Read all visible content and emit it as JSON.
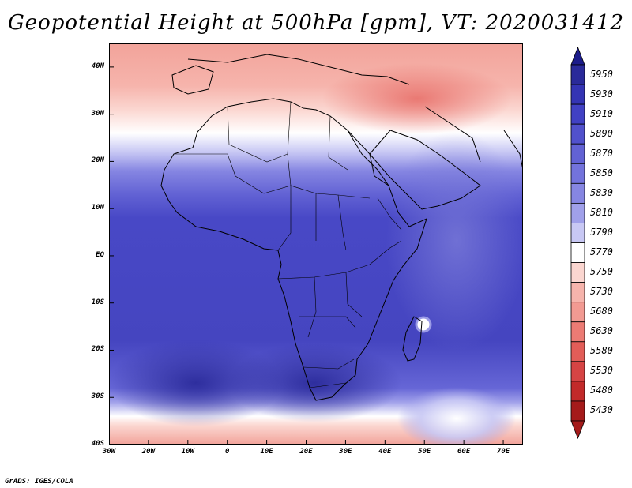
{
  "title": "Geopotential Height at 500hPa [gpm], VT: 2020031412",
  "footer": "GrADS: IGES/COLA",
  "lat_labels": [
    {
      "text": "40N",
      "lat": 40
    },
    {
      "text": "30N",
      "lat": 30
    },
    {
      "text": "20N",
      "lat": 20
    },
    {
      "text": "10N",
      "lat": 10
    },
    {
      "text": "EQ",
      "lat": 0
    },
    {
      "text": "10S",
      "lat": -10
    },
    {
      "text": "20S",
      "lat": -20
    },
    {
      "text": "30S",
      "lat": -30
    },
    {
      "text": "40S",
      "lat": -40
    }
  ],
  "lon_labels": [
    {
      "text": "30W",
      "lon": -30
    },
    {
      "text": "20W",
      "lon": -20
    },
    {
      "text": "10W",
      "lon": -10
    },
    {
      "text": "0",
      "lon": 0
    },
    {
      "text": "10E",
      "lon": 10
    },
    {
      "text": "20E",
      "lon": 20
    },
    {
      "text": "30E",
      "lon": 30
    },
    {
      "text": "40E",
      "lon": 40
    },
    {
      "text": "50E",
      "lon": 50
    },
    {
      "text": "60E",
      "lon": 60
    },
    {
      "text": "70E",
      "lon": 70
    }
  ],
  "colorbar": {
    "levels": [
      "5950",
      "5930",
      "5910",
      "5890",
      "5870",
      "5850",
      "5830",
      "5810",
      "5790",
      "5770",
      "5750",
      "5730",
      "5680",
      "5630",
      "5580",
      "5530",
      "5480",
      "5430"
    ],
    "colors": [
      "#2a2a9a",
      "#3434b4",
      "#4141c4",
      "#5151cc",
      "#6262d4",
      "#7373dc",
      "#8686e2",
      "#a0a0ea",
      "#c8c8f4",
      "#ffffff",
      "#fbd6d0",
      "#f6b4ac",
      "#f29a92",
      "#ec7b74",
      "#e25d58",
      "#d64444",
      "#c22a2a",
      "#a51b1b"
    ]
  },
  "map": {
    "lon_range": [
      -30,
      75
    ],
    "lat_range": [
      -40,
      45
    ],
    "bands": [
      {
        "lat": 45,
        "color": "#f2a39a"
      },
      {
        "lat": 36,
        "color": "#f6b4ac"
      },
      {
        "lat": 31,
        "color": "#fbd6d0"
      },
      {
        "lat": 26,
        "color": "#ffffff"
      },
      {
        "lat": 22,
        "color": "#c8c8f4"
      },
      {
        "lat": 18,
        "color": "#8686e2"
      },
      {
        "lat": 13,
        "color": "#6262d4"
      },
      {
        "lat": 8,
        "color": "#4848c6"
      },
      {
        "lat": -18,
        "color": "#4545c0"
      },
      {
        "lat": -28,
        "color": "#6666d6"
      },
      {
        "lat": -31,
        "color": "#a0a0ea"
      },
      {
        "lat": -34,
        "color": "#ffffff"
      },
      {
        "lat": -36,
        "color": "#fbd6d0"
      },
      {
        "lat": -40,
        "color": "#f2a39a"
      }
    ]
  }
}
